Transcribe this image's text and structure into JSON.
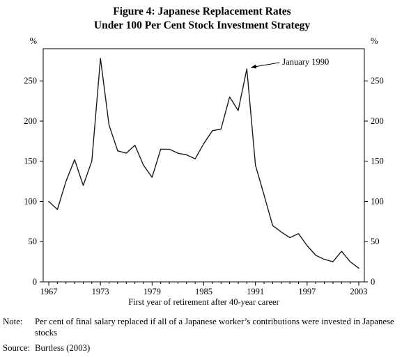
{
  "title": {
    "line1": "Figure 4: Japanese Replacement Rates",
    "line2": "Under 100 Per Cent Stock Investment Strategy"
  },
  "chart_data": {
    "type": "line",
    "title": "Figure 4: Japanese Replacement Rates Under 100 Per Cent Stock Investment Strategy",
    "xlabel": "First year of retirement after 40-year career",
    "ylabel": "%",
    "unit_label": "%",
    "ylim": [
      0,
      290
    ],
    "y_ticks": [
      0,
      50,
      100,
      150,
      200,
      250
    ],
    "x_major_ticks": [
      1967,
      1973,
      1979,
      1985,
      1991,
      1997,
      2003
    ],
    "x": [
      1967,
      1968,
      1969,
      1970,
      1971,
      1972,
      1973,
      1974,
      1975,
      1976,
      1977,
      1978,
      1979,
      1980,
      1981,
      1982,
      1983,
      1984,
      1985,
      1986,
      1987,
      1988,
      1989,
      1990,
      1991,
      1992,
      1993,
      1994,
      1995,
      1996,
      1997,
      1998,
      1999,
      2000,
      2001,
      2002,
      2003
    ],
    "values": [
      100,
      90,
      125,
      152,
      120,
      150,
      278,
      195,
      163,
      160,
      170,
      145,
      130,
      165,
      165,
      160,
      158,
      153,
      172,
      188,
      190,
      230,
      213,
      265,
      145,
      108,
      70,
      62,
      55,
      60,
      45,
      33,
      28,
      25,
      38,
      25,
      17
    ],
    "annotation": {
      "text": "January 1990",
      "year": 1990,
      "value": 265
    },
    "line_color": "#1a1a1a",
    "grid": false,
    "legend": "none"
  },
  "note": {
    "label": "Note:",
    "text": "Per cent of final salary replaced if all of a Japanese worker’s contributions were invested in Japanese stocks"
  },
  "source": {
    "label": "Source:",
    "text": "Burtless (2003)"
  }
}
